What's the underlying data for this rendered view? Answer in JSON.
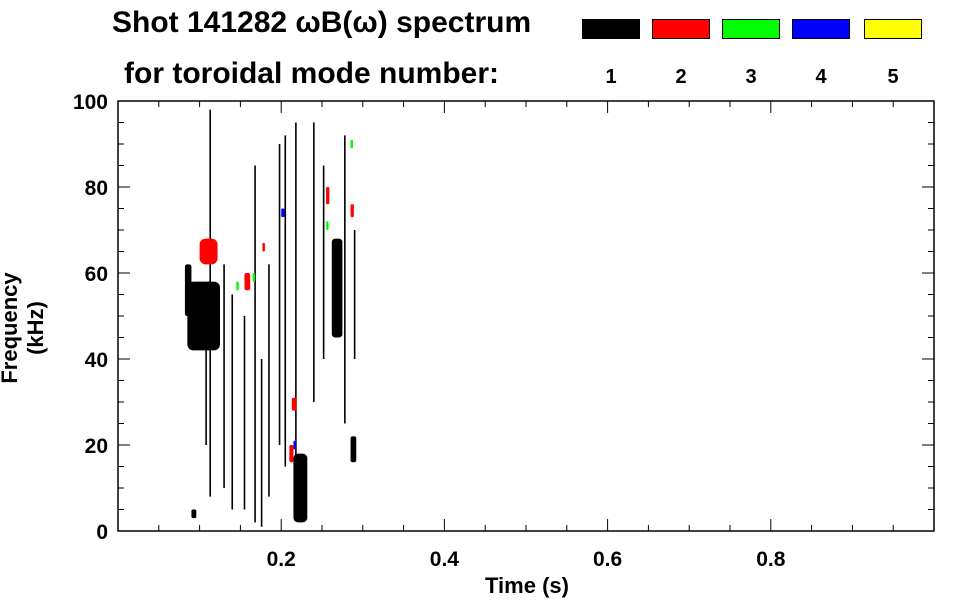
{
  "header": {
    "title_line1": "Shot 141282 ωB(ω) spectrum",
    "title_line2": "for toroidal mode number:"
  },
  "legend": [
    {
      "mode": "1",
      "color": "#000000"
    },
    {
      "mode": "2",
      "color": "#ff0000"
    },
    {
      "mode": "3",
      "color": "#00ff00"
    },
    {
      "mode": "4",
      "color": "#0000ff"
    },
    {
      "mode": "5",
      "color": "#ffff00"
    }
  ],
  "chart_data": {
    "type": "heatmap",
    "xlabel": "Time (s)",
    "ylabel": "Frequency (kHz)",
    "xlim": [
      0.0,
      1.0
    ],
    "ylim": [
      0,
      100
    ],
    "x_ticks": [
      {
        "value": 0.2,
        "label": "0.2"
      },
      {
        "value": 0.4,
        "label": "0.4"
      },
      {
        "value": 0.6,
        "label": "0.6"
      },
      {
        "value": 0.8,
        "label": "0.8"
      }
    ],
    "y_ticks": [
      {
        "value": 0,
        "label": "0"
      },
      {
        "value": 20,
        "label": "20"
      },
      {
        "value": 40,
        "label": "40"
      },
      {
        "value": 60,
        "label": "60"
      },
      {
        "value": 80,
        "label": "80"
      },
      {
        "value": 100,
        "label": "100"
      }
    ],
    "regions": [
      {
        "mode": 1,
        "t0": 0.085,
        "t1": 0.125,
        "f0": 42,
        "f1": 58,
        "color": "#000000"
      },
      {
        "mode": 1,
        "t0": 0.082,
        "t1": 0.09,
        "f0": 50,
        "f1": 62,
        "color": "#000000"
      },
      {
        "mode": 1,
        "t0": 0.262,
        "t1": 0.275,
        "f0": 45,
        "f1": 68,
        "color": "#000000"
      },
      {
        "mode": 1,
        "t0": 0.215,
        "t1": 0.232,
        "f0": 2,
        "f1": 18,
        "color": "#000000"
      },
      {
        "mode": 1,
        "t0": 0.285,
        "t1": 0.292,
        "f0": 16,
        "f1": 22,
        "color": "#000000"
      },
      {
        "mode": 1,
        "t0": 0.09,
        "t1": 0.096,
        "f0": 3,
        "f1": 5,
        "color": "#000000"
      },
      {
        "mode": 2,
        "t0": 0.1,
        "t1": 0.122,
        "f0": 62,
        "f1": 68,
        "color": "#ff0000"
      },
      {
        "mode": 2,
        "t0": 0.155,
        "t1": 0.162,
        "f0": 56,
        "f1": 60,
        "color": "#ff0000"
      },
      {
        "mode": 2,
        "t0": 0.255,
        "t1": 0.259,
        "f0": 76,
        "f1": 80,
        "color": "#ff0000"
      },
      {
        "mode": 2,
        "t0": 0.213,
        "t1": 0.219,
        "f0": 28,
        "f1": 31,
        "color": "#ff0000"
      },
      {
        "mode": 2,
        "t0": 0.21,
        "t1": 0.215,
        "f0": 16,
        "f1": 20,
        "color": "#ff0000"
      },
      {
        "mode": 2,
        "t0": 0.177,
        "t1": 0.18,
        "f0": 65,
        "f1": 67,
        "color": "#ff0000"
      },
      {
        "mode": 2,
        "t0": 0.285,
        "t1": 0.289,
        "f0": 73,
        "f1": 76,
        "color": "#ff0000"
      },
      {
        "mode": 3,
        "t0": 0.145,
        "t1": 0.148,
        "f0": 56,
        "f1": 58,
        "color": "#00ff00"
      },
      {
        "mode": 3,
        "t0": 0.255,
        "t1": 0.258,
        "f0": 70,
        "f1": 72,
        "color": "#00ff00"
      },
      {
        "mode": 3,
        "t0": 0.285,
        "t1": 0.288,
        "f0": 89,
        "f1": 91,
        "color": "#00ff00"
      },
      {
        "mode": 3,
        "t0": 0.165,
        "t1": 0.168,
        "f0": 58,
        "f1": 60,
        "color": "#00ff00"
      },
      {
        "mode": 4,
        "t0": 0.2,
        "t1": 0.204,
        "f0": 73,
        "f1": 75,
        "color": "#0000ff"
      },
      {
        "mode": 4,
        "t0": 0.215,
        "t1": 0.218,
        "f0": 19,
        "f1": 21,
        "color": "#0000ff"
      }
    ],
    "streaks": [
      {
        "t": 0.113,
        "f0": 8,
        "f1": 98
      },
      {
        "t": 0.13,
        "f0": 10,
        "f1": 62
      },
      {
        "t": 0.14,
        "f0": 5,
        "f1": 55
      },
      {
        "t": 0.155,
        "f0": 5,
        "f1": 50
      },
      {
        "t": 0.168,
        "f0": 2,
        "f1": 85
      },
      {
        "t": 0.185,
        "f0": 8,
        "f1": 62
      },
      {
        "t": 0.198,
        "f0": 20,
        "f1": 90
      },
      {
        "t": 0.205,
        "f0": 15,
        "f1": 92
      },
      {
        "t": 0.218,
        "f0": 8,
        "f1": 95
      },
      {
        "t": 0.24,
        "f0": 30,
        "f1": 95
      },
      {
        "t": 0.252,
        "f0": 40,
        "f1": 85
      },
      {
        "t": 0.278,
        "f0": 25,
        "f1": 92
      },
      {
        "t": 0.29,
        "f0": 40,
        "f1": 70
      },
      {
        "t": 0.108,
        "f0": 20,
        "f1": 48
      },
      {
        "t": 0.176,
        "f0": 1,
        "f1": 40
      }
    ]
  }
}
